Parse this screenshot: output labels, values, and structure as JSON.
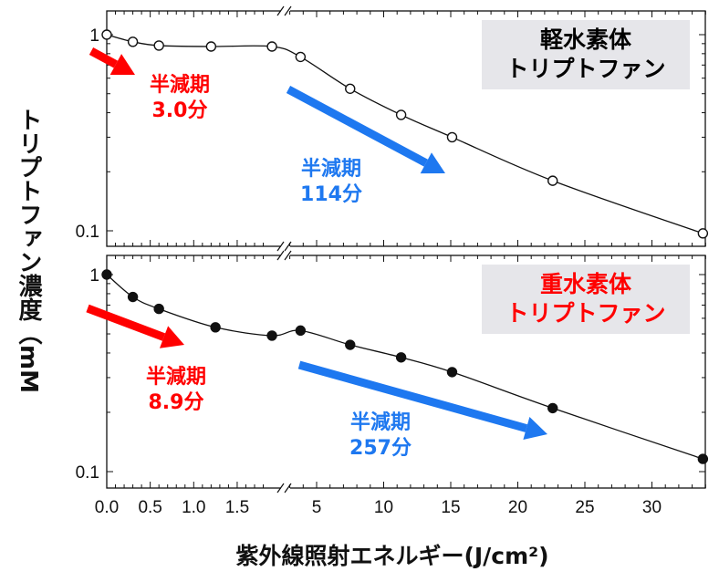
{
  "chart_data": [
    {
      "type": "scatter",
      "panel": "top",
      "label": "軽水素体\nトリプトファン",
      "label_lines": [
        "軽水素体",
        "トリプトファン"
      ],
      "label_color": "#111111",
      "marker": "open-circle",
      "x": [
        0,
        0.3,
        0.6,
        1.2,
        1.9,
        3.8,
        7.5,
        11.3,
        15.1,
        22.6,
        33.8
      ],
      "y": [
        1.0,
        0.92,
        0.88,
        0.87,
        0.87,
        0.77,
        0.53,
        0.39,
        0.3,
        0.18,
        0.097
      ],
      "annotations": [
        {
          "lines": [
            "半減期",
            "3.0分"
          ],
          "color": "#ff0000"
        },
        {
          "lines": [
            "半減期",
            "114分"
          ],
          "color": "#1e78f0"
        }
      ],
      "ylim": [
        0.09,
        1.3
      ],
      "yscale": "log",
      "yticks": [
        "1",
        "0.1"
      ]
    },
    {
      "type": "scatter",
      "panel": "bottom",
      "label_lines": [
        "重水素体",
        "トリプトファン"
      ],
      "label_color": "#ff0000",
      "marker": "filled-circle",
      "x": [
        0,
        0.3,
        0.6,
        1.25,
        1.9,
        3.8,
        7.5,
        11.3,
        15.1,
        22.6,
        33.8
      ],
      "y": [
        1.0,
        0.77,
        0.67,
        0.54,
        0.49,
        0.52,
        0.44,
        0.38,
        0.32,
        0.21,
        0.116
      ],
      "annotations": [
        {
          "lines": [
            "半減期",
            "8.9分"
          ],
          "color": "#ff0000"
        },
        {
          "lines": [
            "半減期",
            "257分"
          ],
          "color": "#1e78f0"
        }
      ],
      "ylim": [
        0.09,
        1.3
      ],
      "yscale": "log",
      "yticks": [
        "1",
        "0.1"
      ]
    }
  ],
  "xaxis": {
    "label": "紫外線照射エネルギー(J/cm²)",
    "broken": true,
    "segments": [
      [
        0,
        2.05
      ],
      [
        3,
        34
      ]
    ],
    "tick_labels_left": [
      "0.0",
      "0.5",
      "1.0",
      "1.5"
    ],
    "tick_values_left": [
      0,
      0.5,
      1.0,
      1.5
    ],
    "tick_labels_right": [
      "5",
      "10",
      "15",
      "20",
      "25",
      "30"
    ],
    "tick_values_right": [
      5,
      10,
      15,
      20,
      25,
      30
    ]
  },
  "yaxis": {
    "label": "トリプトファン濃度（mM"
  },
  "colors": {
    "red": "#ff0000",
    "blue": "#1e78f0"
  }
}
